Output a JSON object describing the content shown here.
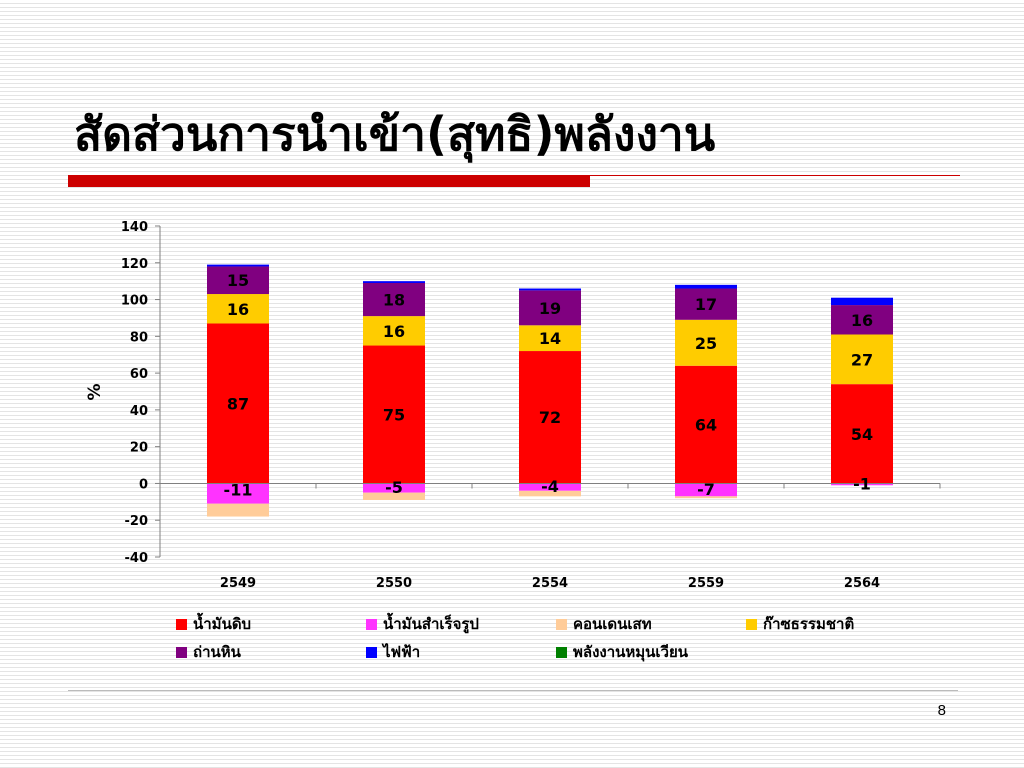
{
  "slide": {
    "title": "สัดส่วนการนำเข้า(สุทธิ)พลังงาน",
    "page_number": "8"
  },
  "chart_data": {
    "type": "bar",
    "stacked": true,
    "categories": [
      "2549",
      "2550",
      "2554",
      "2559",
      "2564"
    ],
    "ylabel": "%",
    "ylim": [
      -40,
      140
    ],
    "yticks": [
      140,
      120,
      100,
      80,
      60,
      40,
      20,
      0,
      -20,
      -40
    ],
    "grid": false,
    "legend_position": "bottom",
    "series": [
      {
        "name": "น้ำมันดิบ",
        "color": "#ff0000",
        "values": [
          87,
          75,
          72,
          64,
          54
        ],
        "labels": [
          "87",
          "75",
          "72",
          "64",
          "54"
        ]
      },
      {
        "name": "น้ำมันสำเร็จรูป",
        "color": "#ff33ff",
        "values": [
          -11,
          -5,
          -4,
          -7,
          -1
        ],
        "labels": [
          "-11",
          "-5",
          "-4",
          "-7",
          "-1"
        ]
      },
      {
        "name": "คอนเดนเสท",
        "color": "#ffcc99",
        "values": [
          -7,
          -4,
          -3,
          -1,
          0
        ],
        "labels": [
          "",
          "",
          "",
          "",
          ""
        ]
      },
      {
        "name": "ก๊าซธรรมชาติ",
        "color": "#ffcc00",
        "values": [
          16,
          16,
          14,
          25,
          27
        ],
        "labels": [
          "16",
          "16",
          "14",
          "25",
          "27"
        ]
      },
      {
        "name": "ถ่านหิน",
        "color": "#800080",
        "values": [
          15,
          18,
          19,
          17,
          16
        ],
        "labels": [
          "15",
          "18",
          "19",
          "17",
          "16"
        ]
      },
      {
        "name": "ไฟฟ้า",
        "color": "#0000ff",
        "values": [
          1,
          1,
          1,
          2,
          4
        ],
        "labels": [
          "",
          "",
          "",
          "",
          ""
        ]
      },
      {
        "name": "พลังงานหมุนเวียน",
        "color": "#008000",
        "values": [
          0,
          0,
          0,
          0,
          0
        ],
        "labels": [
          "",
          "",
          "",
          "",
          ""
        ]
      }
    ]
  }
}
